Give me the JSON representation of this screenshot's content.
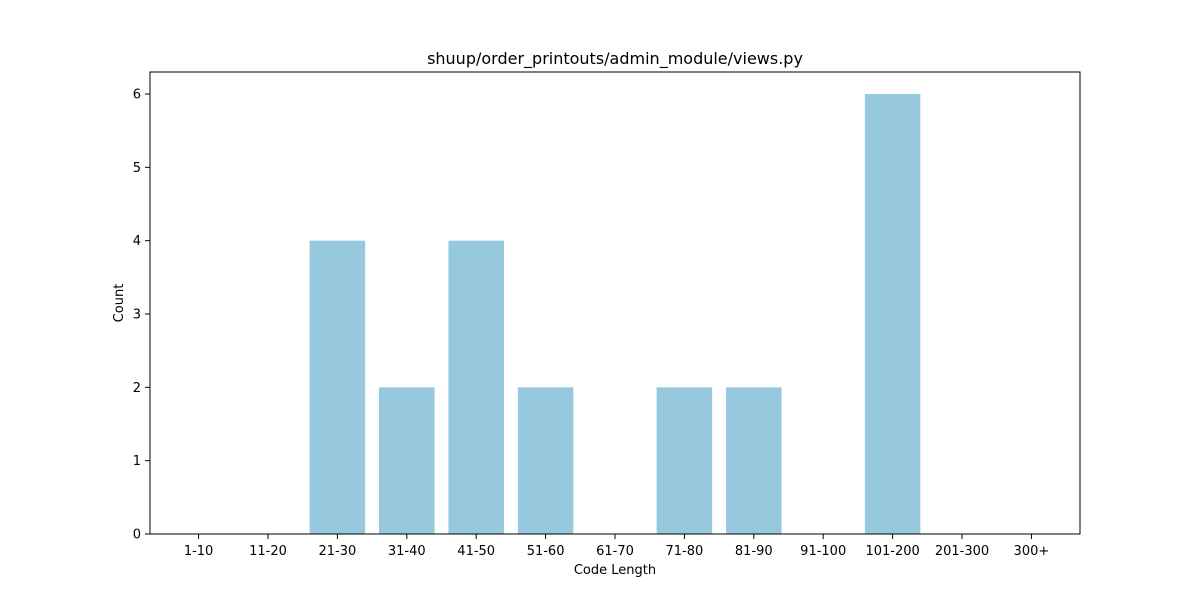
{
  "chart_data": {
    "type": "bar",
    "title": "shuup/order_printouts/admin_module/views.py",
    "xlabel": "Code Length",
    "ylabel": "Count",
    "categories": [
      "1-10",
      "11-20",
      "21-30",
      "31-40",
      "41-50",
      "51-60",
      "61-70",
      "71-80",
      "81-90",
      "91-100",
      "101-200",
      "201-300",
      "300+"
    ],
    "values": [
      0,
      0,
      4,
      2,
      4,
      2,
      0,
      2,
      2,
      0,
      6,
      0,
      0
    ],
    "yticks": [
      0,
      1,
      2,
      3,
      4,
      5,
      6
    ],
    "ylim": [
      0,
      6.3
    ],
    "bar_color": "#96c9dd",
    "grid": false,
    "legend": "none"
  }
}
